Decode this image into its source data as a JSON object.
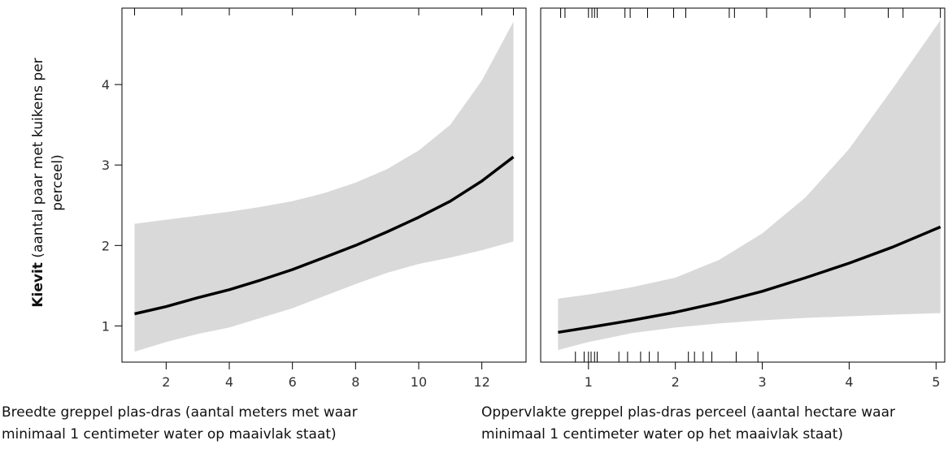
{
  "chart_data": [
    {
      "type": "line",
      "title": "",
      "ylabel_bold": "Kievit",
      "ylabel_rest": " (aantal paar met kuikens per perceel)",
      "xlabel": "Breedte greppel plas-dras (aantal meters met waar minimaal 1 centimeter water op maaivlak staat)",
      "xlim": [
        0.6,
        13.4
      ],
      "ylim": [
        0.55,
        4.95
      ],
      "xticks": [
        2,
        4,
        6,
        8,
        10,
        12
      ],
      "yticks": [
        1,
        2,
        3,
        4
      ],
      "top_ticks": [
        1,
        2.5,
        4,
        6,
        8,
        10,
        12,
        13
      ],
      "series": [
        {
          "x": [
            1,
            2,
            3,
            4,
            5,
            6,
            7,
            8,
            9,
            10,
            11,
            12,
            13
          ],
          "y": [
            1.15,
            1.24,
            1.35,
            1.45,
            1.57,
            1.7,
            1.85,
            2.0,
            2.17,
            2.35,
            2.55,
            2.8,
            3.1
          ],
          "lower": [
            0.68,
            0.8,
            0.9,
            0.98,
            1.1,
            1.22,
            1.37,
            1.52,
            1.66,
            1.77,
            1.85,
            1.94,
            2.05
          ],
          "upper": [
            2.27,
            2.32,
            2.37,
            2.42,
            2.48,
            2.55,
            2.65,
            2.78,
            2.95,
            3.18,
            3.5,
            4.05,
            4.78
          ]
        }
      ]
    },
    {
      "type": "line",
      "title": "",
      "xlabel": "Oppervlakte greppel plas-dras perceel (aantal hectare waar minimaal 1 centimeter water op het maaivlak staat)",
      "xlim": [
        0.45,
        5.1
      ],
      "ylim": [
        0.55,
        4.95
      ],
      "xticks": [
        1,
        2,
        3,
        4,
        5
      ],
      "yticks": [
        1,
        2,
        3,
        4
      ],
      "rug_bottom": [
        0.85,
        0.95,
        1.0,
        1.03,
        1.07,
        1.1,
        1.35,
        1.45,
        1.6,
        1.7,
        1.8,
        2.15,
        2.22,
        2.32,
        2.42,
        2.7,
        2.95
      ],
      "rug_top": [
        0.68,
        0.73,
        1.0,
        1.04,
        1.07,
        1.1,
        1.42,
        1.48,
        1.68,
        1.98,
        2.12,
        2.62,
        2.68,
        3.05,
        3.55,
        3.95,
        4.45,
        4.62,
        5.05
      ],
      "series": [
        {
          "x": [
            0.65,
            1.0,
            1.5,
            2.0,
            2.5,
            3.0,
            3.5,
            4.0,
            4.5,
            5.05
          ],
          "y": [
            0.92,
            0.98,
            1.07,
            1.17,
            1.29,
            1.43,
            1.6,
            1.78,
            1.98,
            2.23
          ],
          "lower": [
            0.7,
            0.8,
            0.91,
            0.98,
            1.03,
            1.07,
            1.1,
            1.12,
            1.14,
            1.16
          ],
          "upper": [
            1.34,
            1.39,
            1.48,
            1.6,
            1.82,
            2.15,
            2.6,
            3.2,
            3.95,
            4.8
          ]
        }
      ]
    }
  ]
}
